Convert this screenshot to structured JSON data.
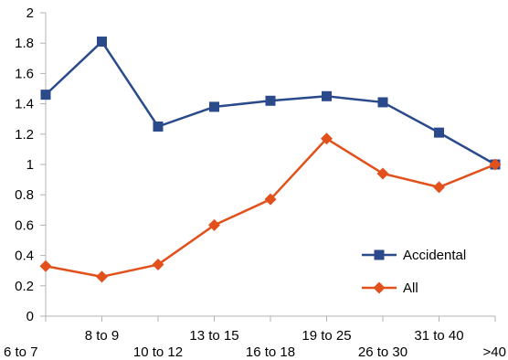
{
  "chart_data": {
    "type": "line",
    "categories": [
      "6 to 7",
      "8 to 9",
      "10 to 12",
      "13 to 15",
      "16 to 18",
      "19 to 25",
      "26 to 30",
      "31 to 40",
      ">40"
    ],
    "y_ticks": [
      "0",
      "0.2",
      "0.4",
      "0.6",
      "0.8",
      "1",
      "1.2",
      "1.4",
      "1.6",
      "1.8",
      "2"
    ],
    "ylim": [
      0,
      2
    ],
    "grid": false,
    "legend_position": "bottom-right",
    "series": [
      {
        "name": "Accidental",
        "color": "#2b4a8c",
        "marker": "square",
        "values": [
          1.46,
          1.81,
          1.25,
          1.38,
          1.42,
          1.45,
          1.41,
          1.21,
          1.0
        ]
      },
      {
        "name": "All",
        "color": "#e2501c",
        "marker": "diamond",
        "values": [
          0.33,
          0.26,
          0.34,
          0.6,
          0.77,
          1.17,
          0.94,
          0.85,
          1.0
        ]
      }
    ]
  }
}
